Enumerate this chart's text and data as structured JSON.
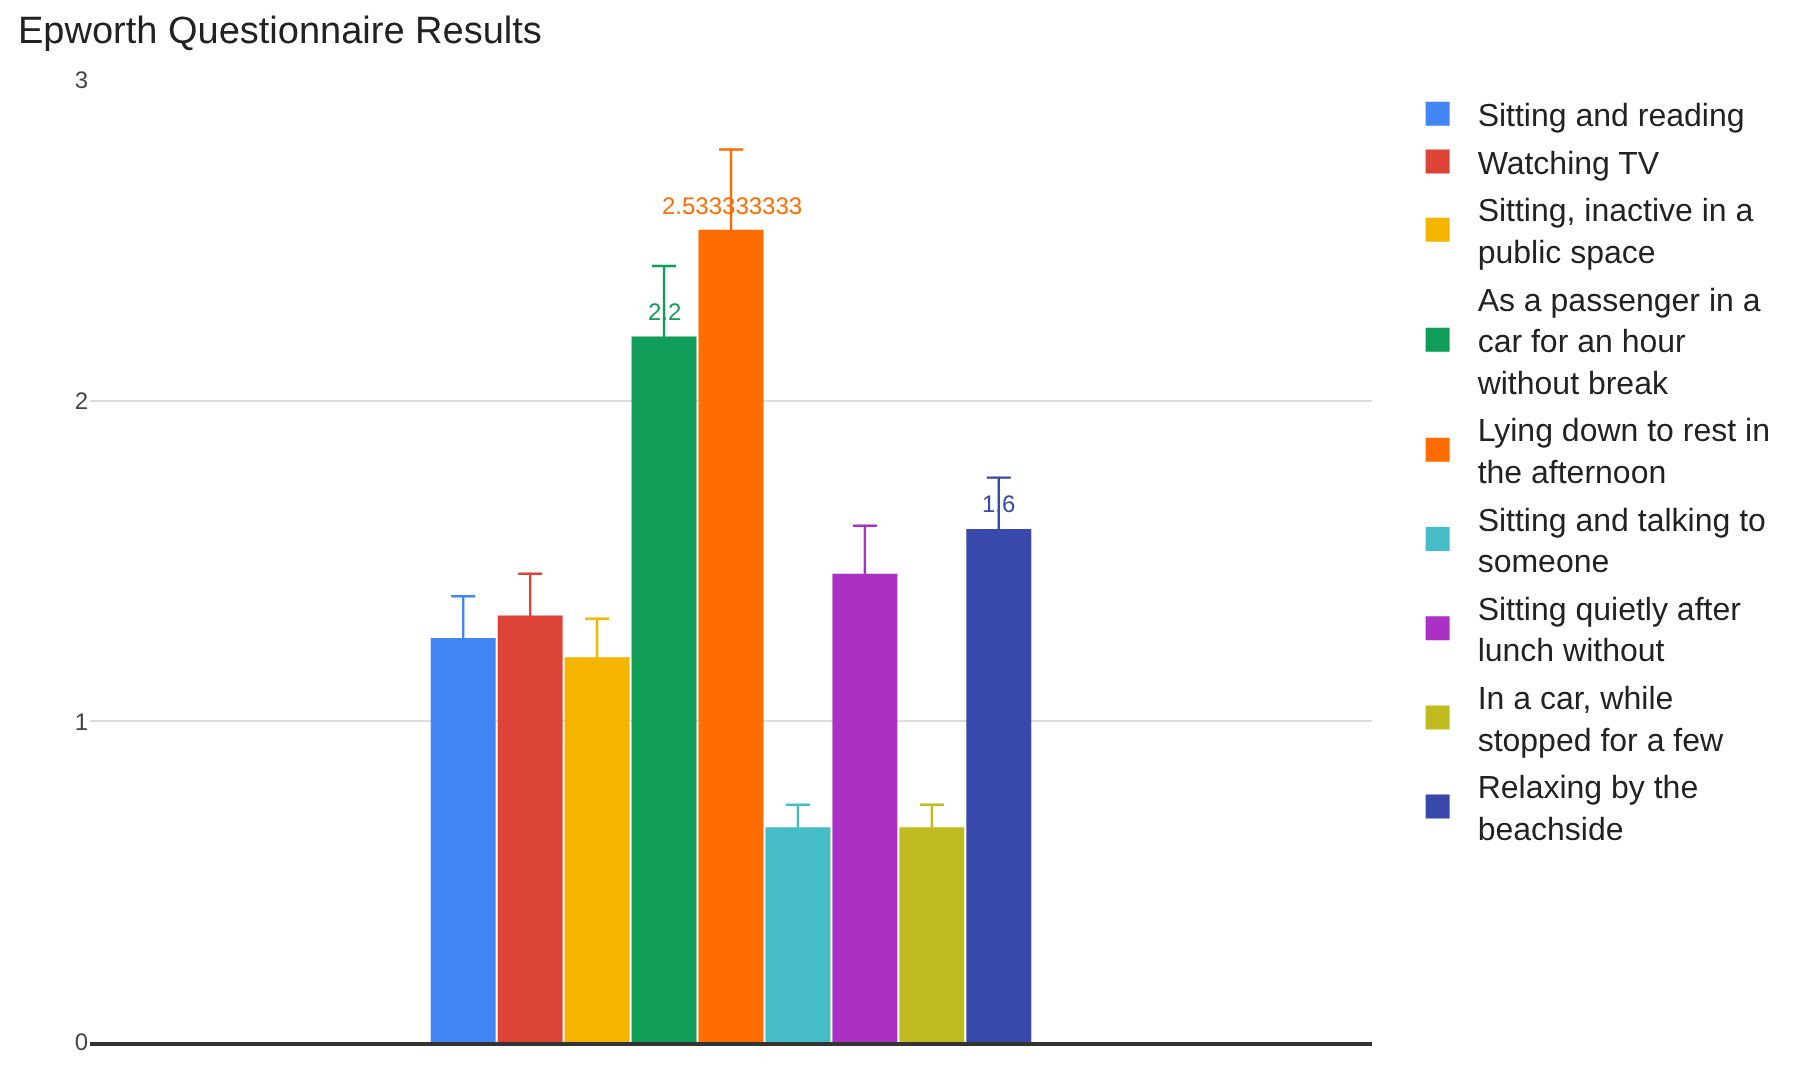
{
  "chart_data": {
    "type": "bar",
    "title": "Epworth Questionnaire Results",
    "categories": [
      null
    ],
    "ylim": [
      0,
      3
    ],
    "yticks": [
      0,
      1,
      2,
      3
    ],
    "grid": "y",
    "legend": "right",
    "series": [
      {
        "name": "Sitting and reading",
        "color": "#4285f4",
        "values": [
          1.26
        ],
        "errors": [
          0.13
        ]
      },
      {
        "name": "Watching TV",
        "color": "#db4437",
        "values": [
          1.33
        ],
        "errors": [
          0.13
        ]
      },
      {
        "name": "Sitting, inactive in a public space",
        "color": "#f4b400",
        "values": [
          1.2
        ],
        "errors": [
          0.12
        ]
      },
      {
        "name": "As a passenger in a car for an hour without break",
        "color": "#0f9d58",
        "values": [
          2.2
        ],
        "errors": [
          0.22
        ],
        "value_labels": [
          "2.2"
        ]
      },
      {
        "name": "Lying down to rest in the afternoon",
        "color": "#ff6d00",
        "values": [
          2.533333333
        ],
        "errors": [
          0.25
        ],
        "value_labels": [
          "2.533333333"
        ]
      },
      {
        "name": "Sitting and talking to someone",
        "color": "#46bdc6",
        "values": [
          0.67
        ],
        "errors": [
          0.07
        ]
      },
      {
        "name": "Sitting quietly after lunch without",
        "color": "#ab30c4",
        "values": [
          1.46
        ],
        "errors": [
          0.15
        ]
      },
      {
        "name": "In a car, while stopped for a few",
        "color": "#c0bc20",
        "values": [
          0.67
        ],
        "errors": [
          0.07
        ]
      },
      {
        "name": "Relaxing by the beachside",
        "color": "#3949ab",
        "values": [
          1.6
        ],
        "errors": [
          0.16
        ],
        "value_labels": [
          "1.6"
        ]
      }
    ]
  }
}
